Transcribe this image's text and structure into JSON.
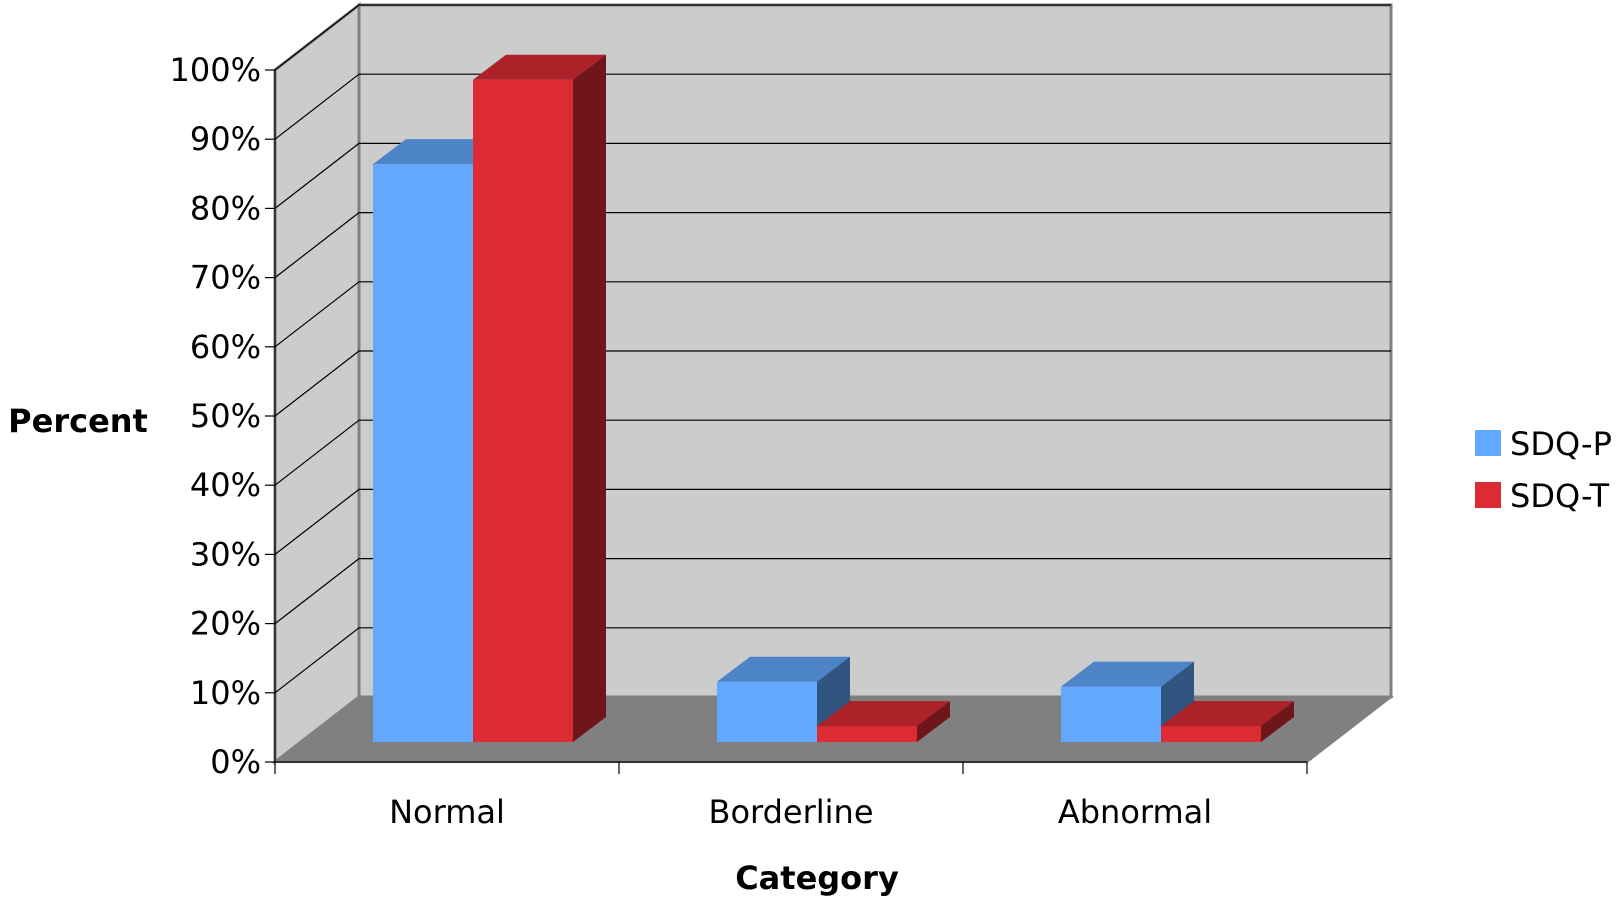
{
  "chart_data": {
    "type": "bar",
    "style": "3d-clustered-column",
    "title": "",
    "xlabel": "Category",
    "ylabel": "Percent",
    "categories": [
      "Normal",
      "Borderline",
      "Abnormal"
    ],
    "series": [
      {
        "name": "SDQ-P",
        "values": [
          83.5,
          8.7,
          8.0
        ],
        "color": "#63a8ff"
      },
      {
        "name": "SDQ-T",
        "values": [
          95.7,
          2.3,
          2.3
        ],
        "color": "#dd2b33"
      }
    ],
    "ylim": [
      0,
      100
    ],
    "y_ticks": [
      "0%",
      "10%",
      "20%",
      "30%",
      "40%",
      "50%",
      "60%",
      "70%",
      "80%",
      "90%",
      "100%"
    ],
    "grid": true,
    "legend_position": "right",
    "colors": {
      "wall": "#cccccc",
      "floor": "#808080",
      "grid": "#000000",
      "frame": "#808080"
    }
  }
}
